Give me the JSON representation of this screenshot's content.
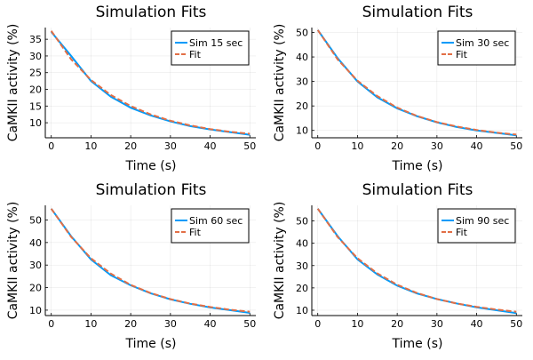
{
  "chart_data": [
    {
      "type": "line",
      "title": "Simulation Fits",
      "xlabel": "Time (s)",
      "ylabel": "CaMKII activity (%)",
      "xlim": [
        -1.5,
        51.5
      ],
      "ylim": [
        5.5,
        38.5
      ],
      "xticks": [
        0,
        10,
        20,
        30,
        40,
        50
      ],
      "yticks": [
        10,
        15,
        20,
        25,
        30,
        35
      ],
      "grid": true,
      "legend": "top-right",
      "x": [
        0,
        5,
        10,
        15,
        20,
        25,
        30,
        35,
        40,
        45,
        50
      ],
      "series": [
        {
          "name": "Sim 15 sec",
          "color": "#009af9",
          "style": "solid",
          "values": [
            37.2,
            30.0,
            22.5,
            17.8,
            14.5,
            12.2,
            10.4,
            9.0,
            8.0,
            7.2,
            6.4
          ]
        },
        {
          "name": "Fit",
          "color": "#e26f46",
          "style": "dashed",
          "values": [
            37.5,
            29.0,
            22.8,
            18.3,
            15.0,
            12.5,
            10.6,
            9.2,
            8.1,
            7.3,
            6.7
          ]
        }
      ]
    },
    {
      "type": "line",
      "title": "Simulation Fits",
      "xlabel": "Time (s)",
      "ylabel": "CaMKII activity (%)",
      "xlim": [
        -1.5,
        51.5
      ],
      "ylim": [
        7,
        52
      ],
      "xticks": [
        0,
        10,
        20,
        30,
        40,
        50
      ],
      "yticks": [
        10,
        20,
        30,
        40,
        50
      ],
      "grid": true,
      "legend": "top-right",
      "x": [
        0,
        5,
        10,
        15,
        20,
        25,
        30,
        35,
        40,
        45,
        50
      ],
      "series": [
        {
          "name": "Sim 30 sec",
          "color": "#009af9",
          "style": "solid",
          "values": [
            51,
            39.5,
            30,
            23.5,
            19,
            15.8,
            13.3,
            11.4,
            10,
            9,
            8
          ]
        },
        {
          "name": "Fit",
          "color": "#e26f46",
          "style": "dashed",
          "values": [
            51,
            39,
            30.3,
            24,
            19.3,
            15.9,
            13.4,
            11.6,
            10.2,
            9.1,
            8.3
          ]
        }
      ]
    },
    {
      "type": "line",
      "title": "Simulation Fits",
      "xlabel": "Time (s)",
      "ylabel": "CaMKII activity (%)",
      "xlim": [
        -1.5,
        51.5
      ],
      "ylim": [
        7.6,
        56.5
      ],
      "xticks": [
        0,
        10,
        20,
        30,
        40,
        50
      ],
      "yticks": [
        10,
        20,
        30,
        40,
        50
      ],
      "grid": true,
      "legend": "top-right",
      "x": [
        0,
        5,
        10,
        15,
        20,
        25,
        30,
        35,
        40,
        45,
        50
      ],
      "series": [
        {
          "name": "Sim 60 sec",
          "color": "#009af9",
          "style": "solid",
          "values": [
            55,
            42.8,
            32.5,
            25.5,
            21,
            17.5,
            14.8,
            12.8,
            11.2,
            10,
            8.8
          ]
        },
        {
          "name": "Fit",
          "color": "#e26f46",
          "style": "dashed",
          "values": [
            55,
            42.5,
            33,
            26.2,
            21.2,
            17.6,
            14.9,
            12.9,
            11.4,
            10.2,
            9.3
          ]
        }
      ]
    },
    {
      "type": "line",
      "title": "Simulation Fits",
      "xlabel": "Time (s)",
      "ylabel": "CaMKII activity (%)",
      "xlim": [
        -1.5,
        51.5
      ],
      "ylim": [
        7.6,
        57
      ],
      "xticks": [
        0,
        10,
        20,
        30,
        40,
        50
      ],
      "yticks": [
        10,
        20,
        30,
        40,
        50
      ],
      "grid": true,
      "legend": "top-right",
      "x": [
        0,
        5,
        10,
        15,
        20,
        25,
        30,
        35,
        40,
        45,
        50
      ],
      "series": [
        {
          "name": "Sim 90 sec",
          "color": "#009af9",
          "style": "solid",
          "values": [
            55.5,
            43.2,
            32.8,
            26,
            21,
            17.5,
            15,
            13,
            11.3,
            10,
            8.7
          ]
        },
        {
          "name": "Fit",
          "color": "#e26f46",
          "style": "dashed",
          "values": [
            55.5,
            42.8,
            33.3,
            26.5,
            21.4,
            17.7,
            15,
            13,
            11.5,
            10.3,
            9.3
          ]
        }
      ]
    }
  ]
}
